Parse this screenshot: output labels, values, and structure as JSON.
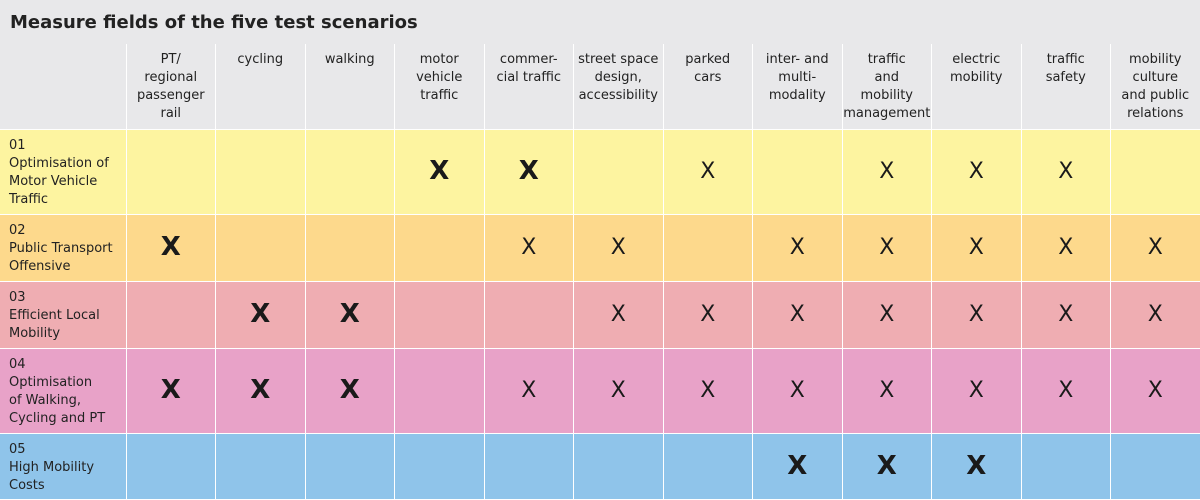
{
  "title": "Measure fields of the five test scenarios",
  "columns": [
    "PT/\nregional\npassenger\nrail",
    "cycling",
    "walking",
    "motor\nvehicle\ntraffic",
    "commer-\ncial traffic",
    "street space\ndesign,\naccessibility",
    "parked\ncars",
    "inter- and\nmulti-\nmodality",
    "traffic\nand\nmobility\nmanagement",
    "electric\nmobility",
    "traffic\nsafety",
    "mobility\nculture\nand public\nrelations"
  ],
  "rows": [
    {
      "number": "01",
      "label": "Optimisation of\nMotor Vehicle\nTraffic",
      "color": "#fdf4a0",
      "height": 85,
      "marks": [
        "",
        "",
        "",
        "X",
        "X",
        "",
        "x",
        "",
        "x",
        "x",
        "x",
        ""
      ]
    },
    {
      "number": "02",
      "label": "Public Transport\nOffensive",
      "color": "#fdd98c",
      "height": 67,
      "marks": [
        "X",
        "",
        "",
        "",
        "x",
        "x",
        "",
        "x",
        "x",
        "x",
        "x",
        "x"
      ]
    },
    {
      "number": "03",
      "label": "Efficient Local\nMobility",
      "color": "#efadb2",
      "height": 67,
      "marks": [
        "",
        "X",
        "X",
        "",
        "",
        "x",
        "x",
        "x",
        "x",
        "x",
        "x",
        "x"
      ]
    },
    {
      "number": "04",
      "label": "Optimisation\nof Walking,\nCycling and PT",
      "color": "#e8a2c8",
      "height": 85,
      "marks": [
        "X",
        "X",
        "X",
        "",
        "x",
        "x",
        "x",
        "x",
        "x",
        "x",
        "x",
        "x"
      ]
    },
    {
      "number": "05",
      "label": "High Mobility\nCosts",
      "color": "#8fc4ea",
      "height": 66,
      "marks": [
        "",
        "",
        "",
        "",
        "",
        "",
        "",
        "X",
        "X",
        "X",
        "",
        ""
      ]
    }
  ],
  "legend_note": {
    "X": "strong",
    "x": "light"
  }
}
